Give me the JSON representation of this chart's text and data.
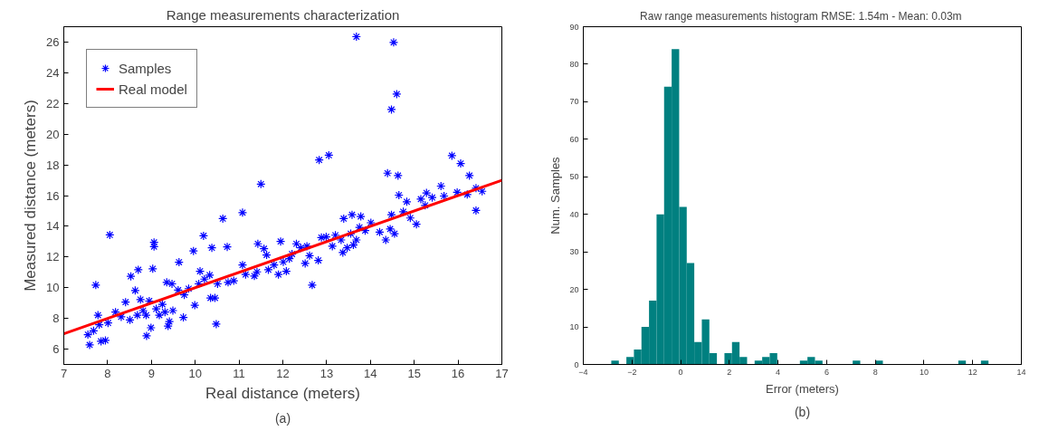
{
  "chart_data": [
    {
      "type": "scatter",
      "title": "Range measurements characterization",
      "xlabel": "Real distance (meters)",
      "ylabel": "Measured distance (meters)",
      "xlim": [
        7,
        17
      ],
      "ylim": [
        5,
        27
      ],
      "xticks": [
        7,
        8,
        9,
        10,
        11,
        12,
        13,
        14,
        15,
        16,
        17
      ],
      "yticks": [
        6,
        8,
        10,
        12,
        14,
        16,
        18,
        20,
        22,
        24,
        26
      ],
      "grid": false,
      "legend": "top left",
      "annotations": [
        "(a)"
      ],
      "series": [
        {
          "name": "Samples",
          "type": "scatter",
          "marker": "cross",
          "color": "#0000ff",
          "x": [
            13.68,
            14.53,
            14.6,
            14.48,
            12.83,
            13.05,
            11.5,
            14.39,
            14.63,
            15.86,
            16.06,
            16.26,
            14.65,
            14.83,
            16.41,
            10.63,
            11.08,
            8.05,
            9.06,
            9.06,
            10.19,
            10.38,
            10.73,
            9.96,
            9.63,
            8.7,
            9.03,
            8.53,
            7.73,
            8.63,
            12.67,
            10.48,
            7.59,
            7.85,
            7.95,
            8.89,
            8.99,
            9.73,
            9.99,
            10.35,
            10.45,
            9.49,
            9.41,
            7.55,
            7.68,
            7.78,
            7.81,
            8.01,
            8.18,
            8.31,
            8.41,
            8.51,
            8.68,
            8.75,
            8.81,
            8.88,
            8.95,
            9.11,
            9.18,
            9.25,
            9.31,
            9.35,
            9.38,
            9.47,
            9.61,
            9.75,
            9.85,
            10.08,
            10.11,
            10.21,
            10.33,
            10.51,
            10.75,
            10.88,
            11.08,
            11.15,
            11.35,
            11.41,
            11.43,
            11.57,
            11.63,
            11.67,
            11.8,
            11.9,
            11.95,
            12.01,
            12.08,
            12.15,
            12.21,
            12.31,
            12.41,
            12.51,
            12.55,
            12.61,
            12.81,
            12.88,
            12.99,
            13.13,
            13.2,
            13.33,
            13.39,
            13.37,
            13.47,
            13.55,
            13.58,
            13.61,
            13.68,
            13.75,
            13.78,
            13.88,
            14.01,
            14.21,
            14.35,
            14.45,
            14.48,
            14.55,
            14.75,
            14.91,
            15.05,
            15.15,
            15.25,
            15.28,
            15.41,
            15.61,
            15.68,
            15.98,
            16.21,
            16.41,
            16.55
          ],
          "values": [
            26.35,
            25.98,
            22.61,
            21.61,
            18.32,
            18.63,
            16.75,
            17.46,
            17.3,
            18.6,
            18.09,
            17.3,
            16.03,
            15.6,
            15.03,
            14.5,
            14.89,
            13.44,
            12.95,
            12.68,
            13.38,
            12.6,
            12.66,
            12.39,
            11.66,
            11.17,
            11.23,
            10.74,
            10.17,
            9.82,
            10.17,
            7.63,
            6.27,
            6.51,
            6.57,
            6.86,
            7.39,
            8.06,
            8.86,
            9.33,
            9.33,
            8.51,
            7.8,
            6.94,
            7.19,
            8.21,
            7.59,
            7.7,
            8.41,
            8.1,
            9.06,
            7.9,
            8.21,
            9.23,
            8.51,
            8.21,
            9.13,
            8.62,
            8.21,
            8.92,
            8.41,
            10.35,
            7.5,
            10.25,
            9.84,
            9.53,
            9.94,
            10.25,
            11.07,
            10.56,
            10.82,
            10.25,
            10.35,
            10.45,
            11.48,
            10.86,
            10.76,
            11.03,
            12.86,
            12.54,
            12.13,
            11.17,
            11.48,
            10.86,
            13.01,
            11.68,
            11.07,
            11.89,
            12.19,
            12.86,
            12.6,
            11.58,
            12.7,
            12.09,
            11.78,
            13.27,
            13.31,
            12.7,
            13.42,
            13.11,
            14.5,
            12.29,
            12.6,
            13.52,
            14.75,
            12.78,
            13.11,
            13.93,
            14.64,
            13.72,
            14.23,
            13.62,
            13.11,
            13.82,
            14.75,
            13.52,
            14.95,
            14.54,
            14.13,
            15.77,
            15.36,
            16.17,
            15.87,
            16.62,
            15.97,
            16.21,
            16.07,
            16.48,
            16.28
          ]
        },
        {
          "name": "Real model",
          "type": "line",
          "line_style": "solid",
          "color": "#ff0000",
          "x": [
            7,
            17
          ],
          "values": [
            7,
            17
          ]
        }
      ]
    },
    {
      "type": "histogram",
      "title": "Raw range measurements histogram  RMSE: 1.54m - Mean: 0.03m",
      "xlabel": "Error (meters)",
      "ylabel": "Num. Samples",
      "xlim": [
        -4,
        14
      ],
      "ylim": [
        0,
        90
      ],
      "xticks": [
        {
          "value": -4,
          "label": "−4"
        },
        {
          "value": -2,
          "label": "−2"
        },
        0,
        2,
        4,
        6,
        8,
        10,
        12,
        14
      ],
      "yticks": [
        0,
        10,
        20,
        30,
        40,
        50,
        60,
        70,
        80,
        90
      ],
      "grid": false,
      "color": "#008080",
      "annotations": [
        "(b)"
      ],
      "bins": [
        -2.85,
        -2.54,
        -2.23,
        -1.92,
        -1.61,
        -1.3,
        -0.99,
        -0.68,
        -0.37,
        -0.06,
        0.25,
        0.56,
        0.87,
        1.18,
        1.49,
        1.8,
        2.11,
        2.42,
        2.73,
        3.04,
        3.35,
        3.66,
        3.97,
        4.28,
        4.59,
        4.9,
        5.21,
        5.52,
        5.83,
        6.14,
        6.45,
        6.76,
        7.07,
        7.38,
        7.69,
        8.0,
        8.31,
        8.62,
        8.93,
        9.24,
        9.55,
        9.86,
        10.17,
        10.48,
        10.79,
        11.1,
        11.41,
        11.72,
        12.03,
        12.34,
        12.65
      ],
      "values": [
        1,
        0,
        2,
        4,
        10,
        17,
        40,
        74,
        84,
        42,
        27,
        6,
        12,
        3,
        0,
        3,
        6,
        2,
        0,
        1,
        2,
        3,
        0,
        0,
        0,
        1,
        2,
        1,
        0,
        0,
        0,
        0,
        1,
        0,
        0,
        1,
        0,
        0,
        0,
        0,
        0,
        0,
        0,
        0,
        0,
        0,
        1,
        0,
        0,
        1
      ]
    }
  ]
}
